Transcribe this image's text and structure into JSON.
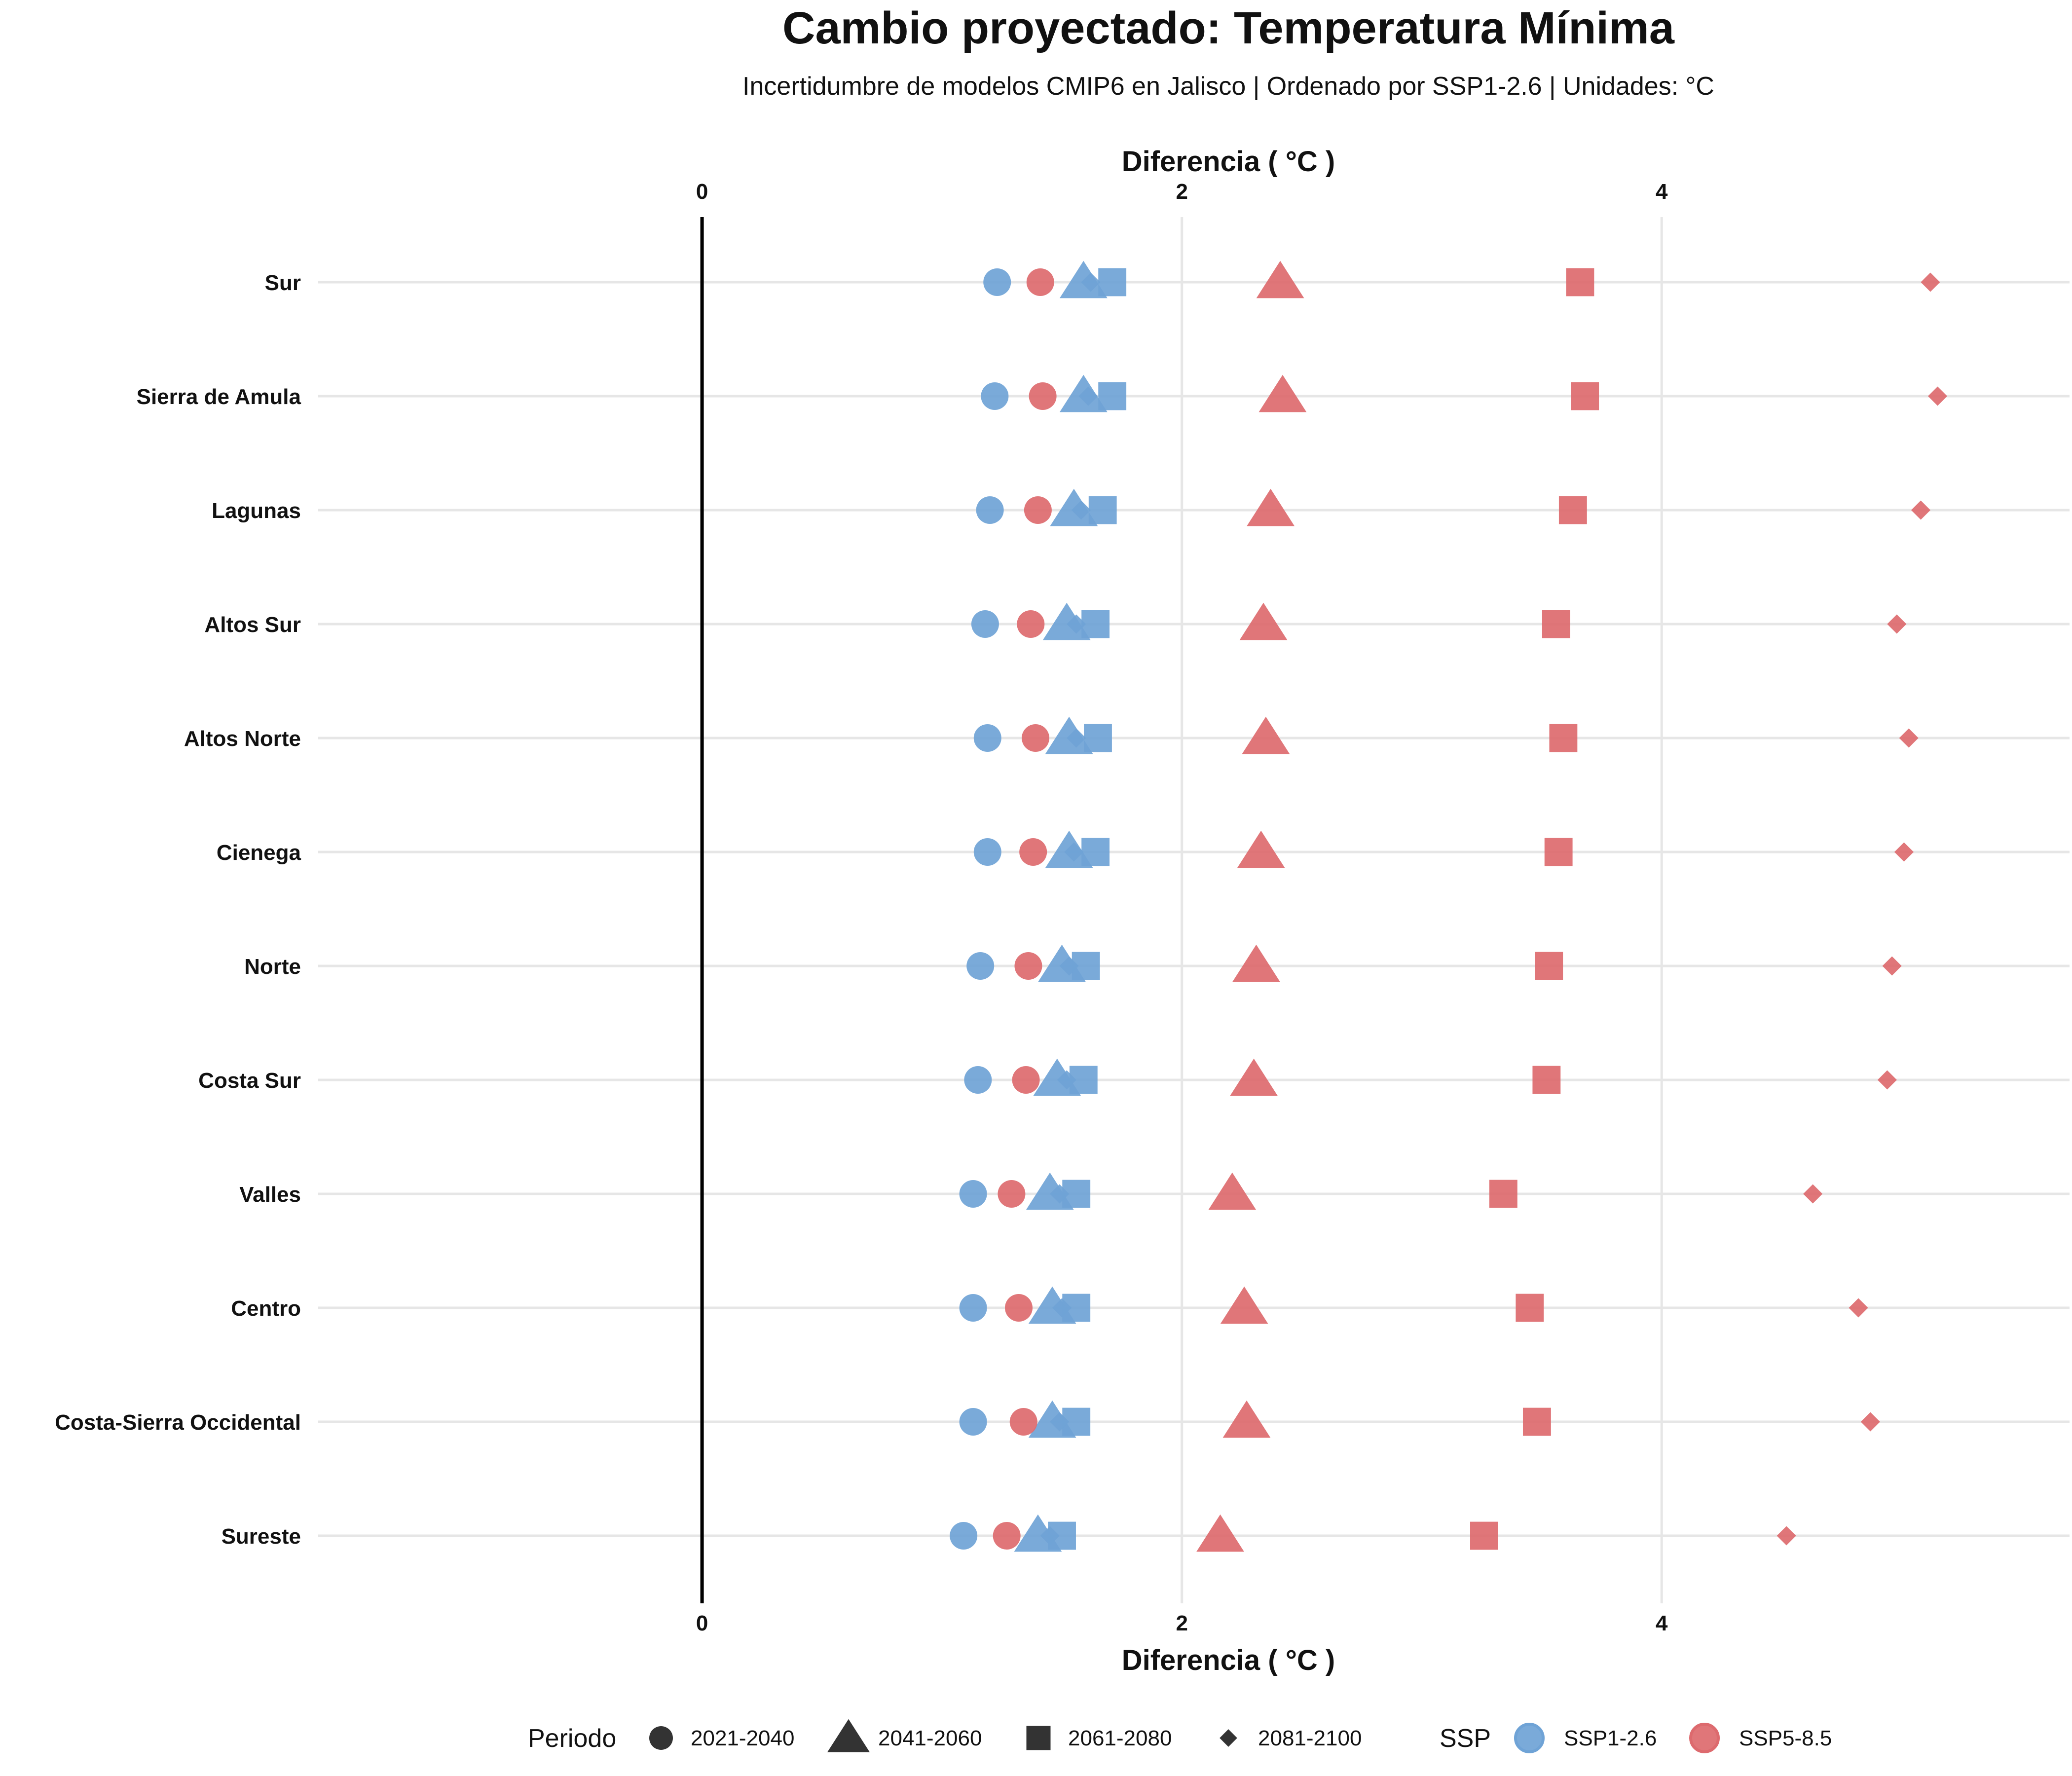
{
  "chart_data": {
    "type": "scatter",
    "title": "Cambio proyectado: Temperatura Mínima",
    "subtitle": "Incertidumbre de modelos CMIP6 en Jalisco | Ordenado por SSP1-2.6 | Unidades: °C",
    "xlabel": "Diferencia ( °C )",
    "xlim": [
      -1.6,
      5.7
    ],
    "xticks": [
      0,
      2,
      4
    ],
    "xtick_labels": [
      "0",
      "2",
      "4"
    ],
    "categories": [
      "Sur",
      "Sierra de Amula",
      "Lagunas",
      "Altos Sur",
      "Altos Norte",
      "Cienega",
      "Norte",
      "Costa Sur",
      "Valles",
      "Centro",
      "Costa-Sierra Occidental",
      "Sureste"
    ],
    "periods": [
      "2021-2040",
      "2041-2060",
      "2061-2080",
      "2081-2100"
    ],
    "period_shapes": [
      "circle",
      "triangle",
      "square",
      "diamond"
    ],
    "legend_period_title": "Periodo",
    "legend_ssp_title": "SSP",
    "series": [
      {
        "name": "SSP1-2.6",
        "color": "#6fa3d6",
        "values": {
          "2021-2040": [
            1.23,
            1.22,
            1.2,
            1.18,
            1.19,
            1.19,
            1.16,
            1.15,
            1.13,
            1.13,
            1.13,
            1.09
          ],
          "2041-2060": [
            1.59,
            1.59,
            1.55,
            1.52,
            1.53,
            1.53,
            1.5,
            1.48,
            1.45,
            1.46,
            1.46,
            1.4
          ],
          "2061-2080": [
            1.71,
            1.71,
            1.67,
            1.64,
            1.65,
            1.64,
            1.6,
            1.59,
            1.56,
            1.56,
            1.56,
            1.5
          ],
          "2081-2100": [
            1.62,
            1.61,
            1.58,
            1.56,
            1.56,
            1.55,
            1.53,
            1.52,
            1.49,
            1.5,
            1.49,
            1.45
          ]
        }
      },
      {
        "name": "SSP5-8.5",
        "color": "#dd6a6e",
        "values": {
          "2021-2040": [
            1.41,
            1.42,
            1.4,
            1.37,
            1.39,
            1.38,
            1.36,
            1.35,
            1.29,
            1.32,
            1.34,
            1.27
          ],
          "2041-2060": [
            2.41,
            2.42,
            2.37,
            2.34,
            2.35,
            2.33,
            2.31,
            2.3,
            2.21,
            2.26,
            2.27,
            2.16
          ],
          "2061-2080": [
            3.66,
            3.68,
            3.63,
            3.56,
            3.59,
            3.57,
            3.53,
            3.52,
            3.34,
            3.45,
            3.48,
            3.26
          ],
          "2081-2100": [
            5.12,
            5.15,
            5.08,
            4.98,
            5.03,
            5.01,
            4.96,
            4.94,
            4.63,
            4.82,
            4.87,
            4.52
          ]
        }
      }
    ]
  }
}
